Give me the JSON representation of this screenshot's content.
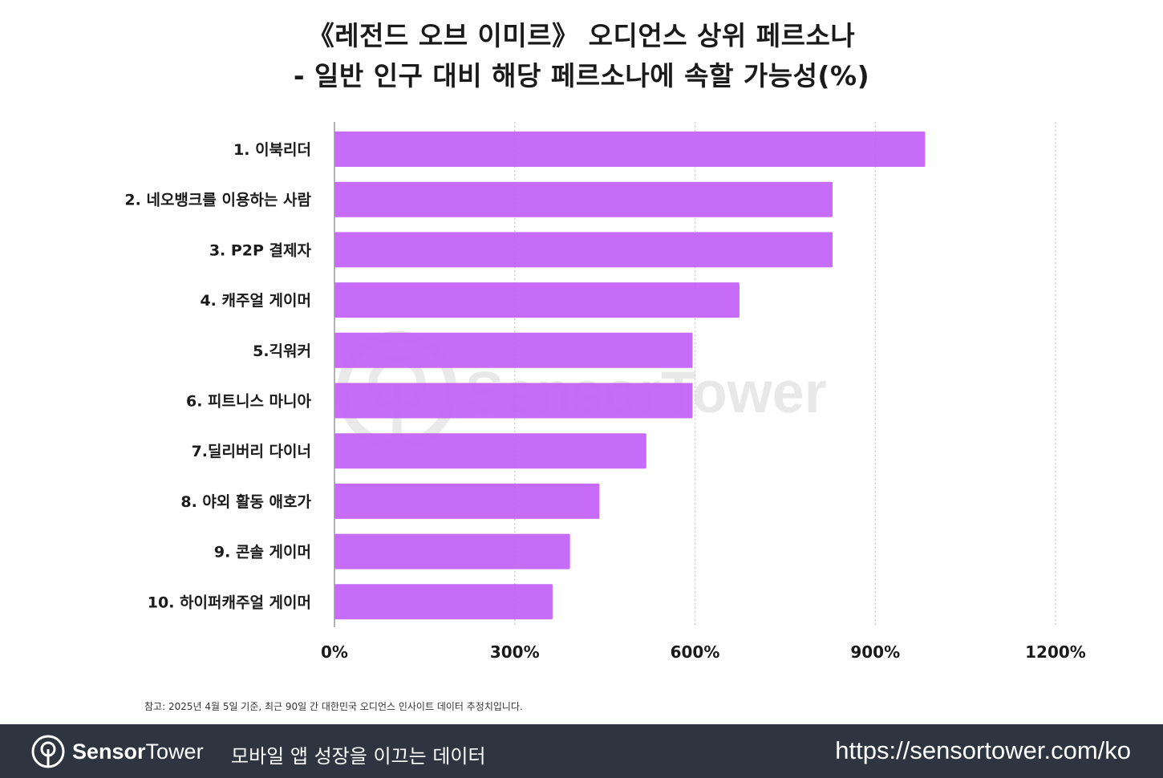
{
  "colors": {
    "bar": "#c260f7",
    "axis": "#9a9a9a",
    "grid": "#c8c8c8",
    "footer_bg": "#2e3540",
    "watermark": "#dcdcdc"
  },
  "title": {
    "line1": "《레전드 오브 이미르》 오디언스 상위 페르소나",
    "line2": "- 일반 인구 대비 해당 페르소나에 속할 가능성(%)"
  },
  "chart_data": {
    "type": "bar",
    "orientation": "horizontal",
    "categories": [
      "1. 이북리더",
      "2. 네오뱅크를 이용하는 사람",
      "3. P2P 결제자",
      "4. 캐주얼 게이머",
      "5.긱워커",
      "6. 피트니스 마니아",
      "7.딜리버리 다이너",
      "8. 야외 활동 애호가",
      "9. 콘솔 게이머",
      "10. 하이퍼캐주얼 게이머"
    ],
    "values": [
      983,
      829,
      829,
      674,
      596,
      596,
      519,
      441,
      392,
      363
    ],
    "xlim": [
      0,
      1200
    ],
    "xticks": [
      0,
      300,
      600,
      900,
      1200
    ],
    "xtick_labels": [
      "0%",
      "300%",
      "600%",
      "900%",
      "1200%"
    ],
    "grid": "vertical dotted",
    "xlabel": "",
    "ylabel": ""
  },
  "watermark": {
    "text": "SensorTower"
  },
  "note": "참고: 2025년 4월 5일 기준, 최근 90일 간 대한민국 오디언스 인사이트 데이터 추정치입니다.",
  "footer": {
    "logo_icon": "sensor-tower-logo-icon",
    "brand_part1": "Sensor",
    "brand_part2": "Tower",
    "tagline": "모바일 앱 성장을 이끄는 데이터",
    "url": "https://sensortower.com/ko"
  }
}
